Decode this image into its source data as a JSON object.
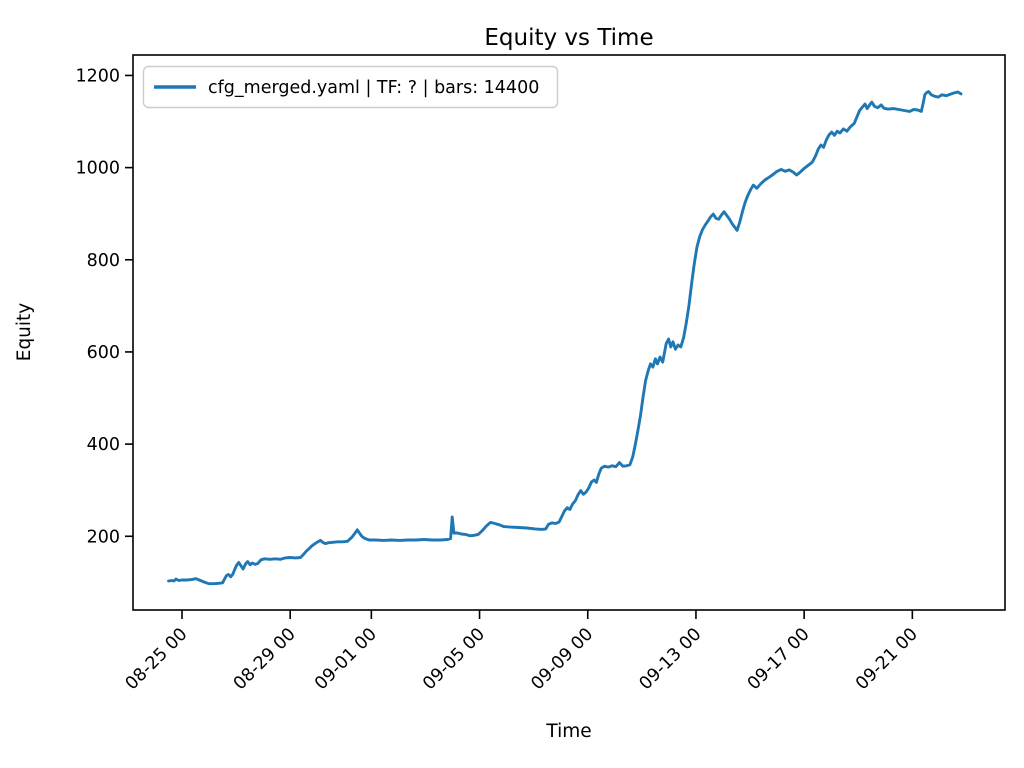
{
  "figure": {
    "title": "Equity vs Time",
    "x_axis_label": "Time",
    "y_axis_label": "Equity",
    "legend": {
      "label": "cfg_merged.yaml | TF: ? | bars: 14400",
      "line_color": "#1f77b4"
    }
  },
  "chart_data": {
    "type": "line",
    "title": "Equity vs Time",
    "xlabel": "Time",
    "ylabel": "Equity",
    "grid": false,
    "legend_position": "upper left",
    "line_color": "#1f77b4",
    "x_unit": "days since 08-25 00:00 (tick dates are MM-DD HH)",
    "x_tick_labels": [
      "08-25 00",
      "08-29 00",
      "09-01 00",
      "09-05 00",
      "09-09 00",
      "09-13 00",
      "09-17 00",
      "09-21 00"
    ],
    "x_tick_days": [
      0,
      4,
      7,
      11,
      15,
      19,
      23,
      27
    ],
    "y_ticks": [
      200,
      400,
      600,
      800,
      1000,
      1200
    ],
    "ylim_approx": [
      40,
      1244
    ],
    "xlim_days_approx": [
      -1.8,
      30.3
    ],
    "series": [
      {
        "name": "cfg_merged.yaml | TF: ? | bars: 14400",
        "color": "#1f77b4",
        "points": [
          [
            -0.5,
            103
          ],
          [
            -0.38,
            104
          ],
          [
            -0.3,
            103
          ],
          [
            -0.22,
            107
          ],
          [
            -0.12,
            104
          ],
          [
            0.0,
            105
          ],
          [
            0.18,
            105
          ],
          [
            0.35,
            106
          ],
          [
            0.52,
            108
          ],
          [
            0.68,
            104
          ],
          [
            0.85,
            100
          ],
          [
            1.0,
            97
          ],
          [
            1.18,
            97
          ],
          [
            1.35,
            98
          ],
          [
            1.5,
            99
          ],
          [
            1.58,
            108
          ],
          [
            1.65,
            115
          ],
          [
            1.72,
            117
          ],
          [
            1.8,
            112
          ],
          [
            1.88,
            118
          ],
          [
            1.95,
            128
          ],
          [
            2.03,
            138
          ],
          [
            2.1,
            143
          ],
          [
            2.18,
            136
          ],
          [
            2.26,
            129
          ],
          [
            2.35,
            140
          ],
          [
            2.43,
            145
          ],
          [
            2.52,
            138
          ],
          [
            2.6,
            142
          ],
          [
            2.7,
            139
          ],
          [
            2.8,
            141
          ],
          [
            2.92,
            149
          ],
          [
            3.05,
            151
          ],
          [
            3.25,
            150
          ],
          [
            3.45,
            151
          ],
          [
            3.65,
            150
          ],
          [
            3.82,
            153
          ],
          [
            4.0,
            154
          ],
          [
            4.2,
            153
          ],
          [
            4.38,
            154
          ],
          [
            4.5,
            161
          ],
          [
            4.6,
            168
          ],
          [
            4.7,
            173
          ],
          [
            4.8,
            179
          ],
          [
            4.92,
            184
          ],
          [
            5.02,
            188
          ],
          [
            5.12,
            191
          ],
          [
            5.2,
            187
          ],
          [
            5.3,
            184
          ],
          [
            5.42,
            186
          ],
          [
            5.58,
            187
          ],
          [
            5.75,
            188
          ],
          [
            5.95,
            188
          ],
          [
            6.12,
            189
          ],
          [
            6.28,
            198
          ],
          [
            6.4,
            207
          ],
          [
            6.48,
            214
          ],
          [
            6.56,
            207
          ],
          [
            6.66,
            199
          ],
          [
            6.78,
            195
          ],
          [
            6.92,
            192
          ],
          [
            7.15,
            192
          ],
          [
            7.45,
            191
          ],
          [
            7.75,
            192
          ],
          [
            8.05,
            191
          ],
          [
            8.35,
            192
          ],
          [
            8.65,
            192
          ],
          [
            8.95,
            193
          ],
          [
            9.25,
            192
          ],
          [
            9.55,
            192
          ],
          [
            9.82,
            193
          ],
          [
            9.93,
            195
          ],
          [
            9.99,
            242
          ],
          [
            10.05,
            207
          ],
          [
            10.18,
            207
          ],
          [
            10.32,
            205
          ],
          [
            10.48,
            204
          ],
          [
            10.64,
            201
          ],
          [
            10.8,
            202
          ],
          [
            10.95,
            204
          ],
          [
            11.1,
            212
          ],
          [
            11.25,
            222
          ],
          [
            11.4,
            230
          ],
          [
            11.55,
            228
          ],
          [
            11.72,
            225
          ],
          [
            11.9,
            221
          ],
          [
            12.15,
            220
          ],
          [
            12.45,
            219
          ],
          [
            12.75,
            218
          ],
          [
            13.05,
            216
          ],
          [
            13.3,
            215
          ],
          [
            13.45,
            216
          ],
          [
            13.55,
            226
          ],
          [
            13.68,
            229
          ],
          [
            13.82,
            228
          ],
          [
            13.94,
            231
          ],
          [
            14.04,
            243
          ],
          [
            14.14,
            255
          ],
          [
            14.24,
            262
          ],
          [
            14.34,
            258
          ],
          [
            14.44,
            270
          ],
          [
            14.54,
            277
          ],
          [
            14.64,
            290
          ],
          [
            14.74,
            299
          ],
          [
            14.84,
            291
          ],
          [
            14.94,
            296
          ],
          [
            15.04,
            305
          ],
          [
            15.14,
            318
          ],
          [
            15.24,
            322
          ],
          [
            15.32,
            317
          ],
          [
            15.41,
            335
          ],
          [
            15.5,
            348
          ],
          [
            15.62,
            352
          ],
          [
            15.76,
            350
          ],
          [
            15.9,
            353
          ],
          [
            16.04,
            351
          ],
          [
            16.17,
            360
          ],
          [
            16.3,
            352
          ],
          [
            16.44,
            353
          ],
          [
            16.56,
            355
          ],
          [
            16.66,
            372
          ],
          [
            16.76,
            400
          ],
          [
            16.86,
            432
          ],
          [
            16.95,
            462
          ],
          [
            17.04,
            500
          ],
          [
            17.14,
            538
          ],
          [
            17.24,
            560
          ],
          [
            17.32,
            574
          ],
          [
            17.41,
            567
          ],
          [
            17.5,
            585
          ],
          [
            17.58,
            574
          ],
          [
            17.67,
            589
          ],
          [
            17.77,
            578
          ],
          [
            17.9,
            618
          ],
          [
            17.99,
            628
          ],
          [
            18.07,
            611
          ],
          [
            18.15,
            622
          ],
          [
            18.24,
            606
          ],
          [
            18.34,
            615
          ],
          [
            18.44,
            611
          ],
          [
            18.54,
            630
          ],
          [
            18.64,
            662
          ],
          [
            18.74,
            700
          ],
          [
            18.84,
            748
          ],
          [
            18.94,
            792
          ],
          [
            19.04,
            828
          ],
          [
            19.14,
            850
          ],
          [
            19.24,
            865
          ],
          [
            19.34,
            875
          ],
          [
            19.44,
            884
          ],
          [
            19.54,
            893
          ],
          [
            19.64,
            899
          ],
          [
            19.74,
            890
          ],
          [
            19.84,
            888
          ],
          [
            19.94,
            897
          ],
          [
            20.04,
            904
          ],
          [
            20.14,
            896
          ],
          [
            20.24,
            888
          ],
          [
            20.34,
            878
          ],
          [
            20.44,
            870
          ],
          [
            20.52,
            864
          ],
          [
            20.62,
            882
          ],
          [
            20.72,
            905
          ],
          [
            20.82,
            925
          ],
          [
            20.92,
            940
          ],
          [
            21.02,
            952
          ],
          [
            21.12,
            962
          ],
          [
            21.25,
            955
          ],
          [
            21.4,
            965
          ],
          [
            21.55,
            973
          ],
          [
            21.7,
            979
          ],
          [
            21.85,
            985
          ],
          [
            22.0,
            992
          ],
          [
            22.15,
            996
          ],
          [
            22.3,
            992
          ],
          [
            22.45,
            995
          ],
          [
            22.6,
            990
          ],
          [
            22.72,
            984
          ],
          [
            22.85,
            990
          ],
          [
            23.0,
            998
          ],
          [
            23.15,
            1005
          ],
          [
            23.3,
            1012
          ],
          [
            23.42,
            1025
          ],
          [
            23.52,
            1040
          ],
          [
            23.62,
            1049
          ],
          [
            23.72,
            1044
          ],
          [
            23.82,
            1060
          ],
          [
            23.92,
            1071
          ],
          [
            24.02,
            1077
          ],
          [
            24.12,
            1070
          ],
          [
            24.22,
            1079
          ],
          [
            24.32,
            1075
          ],
          [
            24.45,
            1084
          ],
          [
            24.58,
            1079
          ],
          [
            24.7,
            1088
          ],
          [
            24.85,
            1096
          ],
          [
            24.95,
            1110
          ],
          [
            25.05,
            1124
          ],
          [
            25.15,
            1131
          ],
          [
            25.25,
            1138
          ],
          [
            25.33,
            1128
          ],
          [
            25.42,
            1136
          ],
          [
            25.5,
            1142
          ],
          [
            25.6,
            1133
          ],
          [
            25.72,
            1130
          ],
          [
            25.85,
            1136
          ],
          [
            25.95,
            1129
          ],
          [
            26.1,
            1127
          ],
          [
            26.3,
            1128
          ],
          [
            26.5,
            1126
          ],
          [
            26.7,
            1124
          ],
          [
            26.9,
            1122
          ],
          [
            27.05,
            1126
          ],
          [
            27.2,
            1125
          ],
          [
            27.33,
            1122
          ],
          [
            27.4,
            1140
          ],
          [
            27.46,
            1158
          ],
          [
            27.53,
            1163
          ],
          [
            27.6,
            1165
          ],
          [
            27.7,
            1158
          ],
          [
            27.82,
            1155
          ],
          [
            27.95,
            1153
          ],
          [
            28.1,
            1158
          ],
          [
            28.25,
            1156
          ],
          [
            28.4,
            1159
          ],
          [
            28.55,
            1162
          ],
          [
            28.68,
            1164
          ],
          [
            28.8,
            1160
          ]
        ]
      }
    ]
  }
}
